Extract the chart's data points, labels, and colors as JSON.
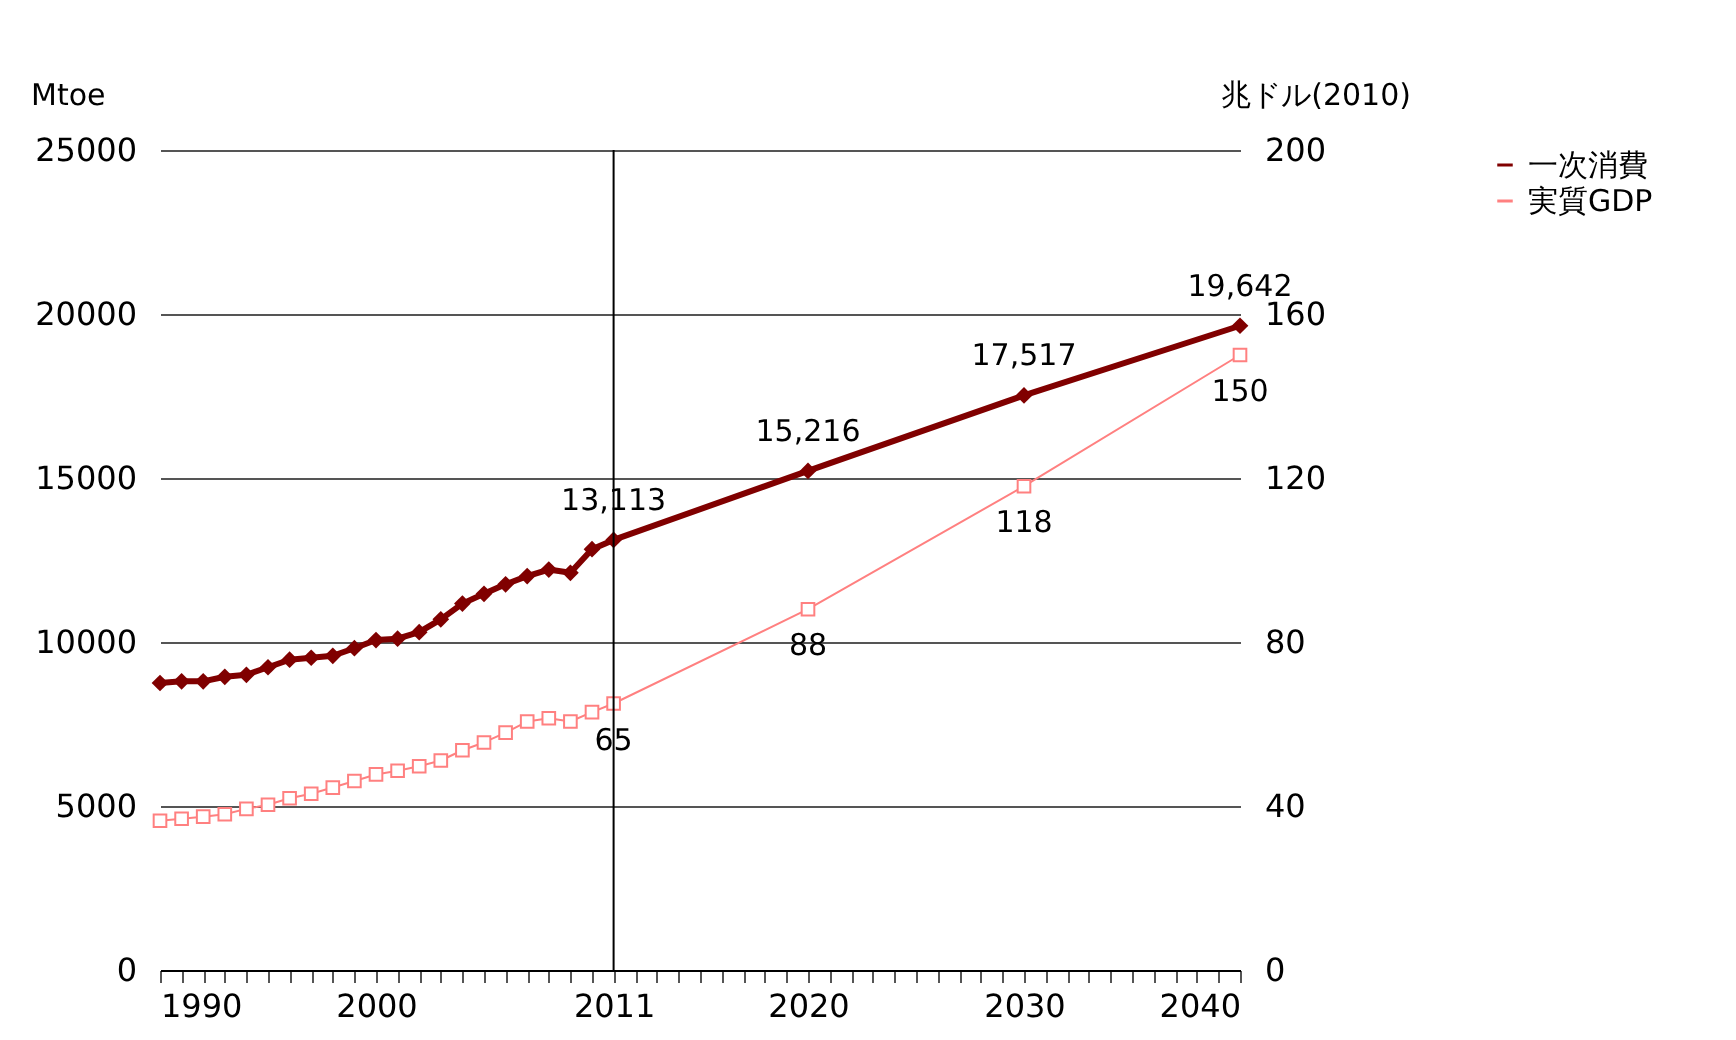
{
  "chart_data": {
    "type": "line",
    "ylabel": "Mtoe",
    "y2label": "兆ドル(2010)",
    "xlim": [
      1990,
      2040
    ],
    "xticks": [
      1990,
      {
        "value": 1991,
        "label": null
      },
      {
        "value": 1992,
        "label": null
      },
      {
        "value": 1993,
        "label": null
      },
      {
        "value": 1994,
        "label": null
      },
      {
        "value": 1995,
        "label": null
      },
      {
        "value": 1996,
        "label": null
      },
      {
        "value": 1997,
        "label": null
      },
      {
        "value": 1998,
        "label": null
      },
      {
        "value": 1999,
        "label": null
      },
      2000,
      {
        "value": 2001,
        "label": null
      },
      {
        "value": 2002,
        "label": null
      },
      {
        "value": 2003,
        "label": null
      },
      {
        "value": 2004,
        "label": null
      },
      {
        "value": 2005,
        "label": null
      },
      {
        "value": 2006,
        "label": null
      },
      {
        "value": 2007,
        "label": null
      },
      {
        "value": 2008,
        "label": null
      },
      {
        "value": 2009,
        "label": null
      },
      {
        "value": 2010,
        "label": null
      },
      2011,
      {
        "value": 2012,
        "label": null
      },
      {
        "value": 2013,
        "label": null
      },
      {
        "value": 2014,
        "label": null
      },
      {
        "value": 2015,
        "label": null
      },
      {
        "value": 2016,
        "label": null
      },
      {
        "value": 2017,
        "label": null
      },
      {
        "value": 2018,
        "label": null
      },
      {
        "value": 2019,
        "label": null
      },
      2020,
      {
        "value": 2021,
        "label": null
      },
      {
        "value": 2022,
        "label": null
      },
      {
        "value": 2023,
        "label": null
      },
      {
        "value": 2024,
        "label": null
      },
      {
        "value": 2025,
        "label": null
      },
      {
        "value": 2026,
        "label": null
      },
      {
        "value": 2027,
        "label": null
      },
      {
        "value": 2028,
        "label": null
      },
      {
        "value": 2029,
        "label": null
      },
      2030,
      {
        "value": 2031,
        "label": null
      },
      {
        "value": 2032,
        "label": null
      },
      {
        "value": 2033,
        "label": null
      },
      {
        "value": 2034,
        "label": null
      },
      {
        "value": 2035,
        "label": null
      },
      {
        "value": 2036,
        "label": null
      },
      {
        "value": 2037,
        "label": null
      },
      {
        "value": 2038,
        "label": null
      },
      {
        "value": 2039,
        "label": null
      },
      2040
    ],
    "ylim": [
      0,
      25000
    ],
    "yticks": [
      0,
      5000,
      10000,
      15000,
      20000,
      25000
    ],
    "y2lim": [
      0,
      200
    ],
    "y2ticks": [
      0,
      40,
      80,
      120,
      160,
      200
    ],
    "grid": "y",
    "legend": "right",
    "ref_lines": [
      {
        "axis": "x",
        "value": 2011,
        "color": "#000000"
      }
    ],
    "series": [
      {
        "name": "一次消費",
        "color": "#800000",
        "marker": "diamond",
        "axis": "y",
        "x": [
          1990,
          1991,
          1992,
          1993,
          1994,
          1995,
          1996,
          1997,
          1998,
          1999,
          2000,
          2001,
          2002,
          2003,
          2004,
          2005,
          2006,
          2007,
          2008,
          2009,
          2010,
          2011,
          2020,
          2030,
          2040
        ],
        "values": [
          8750,
          8800,
          8800,
          8940,
          9000,
          9230,
          9460,
          9520,
          9580,
          9810,
          10060,
          10100,
          10300,
          10690,
          11170,
          11470,
          11760,
          12010,
          12210,
          12110,
          12830,
          13113,
          15216,
          17517,
          19642
        ],
        "value_labels": [
          null,
          null,
          null,
          null,
          null,
          null,
          null,
          null,
          null,
          null,
          null,
          null,
          null,
          null,
          null,
          null,
          null,
          null,
          null,
          null,
          null,
          "13,113",
          "15,216",
          "17,517",
          "19,642"
        ]
      },
      {
        "name": "実質GDP",
        "color": "#ff8080",
        "marker": "square",
        "axis": "y2",
        "x": [
          1990,
          1991,
          1992,
          1993,
          1994,
          1995,
          1996,
          1997,
          1998,
          1999,
          2000,
          2001,
          2002,
          2003,
          2004,
          2005,
          2006,
          2007,
          2008,
          2009,
          2010,
          2011,
          2020,
          2030,
          2040
        ],
        "values": [
          36.4,
          36.9,
          37.4,
          38.0,
          39.3,
          40.3,
          41.9,
          43.0,
          44.5,
          46.1,
          47.7,
          48.6,
          49.7,
          51.1,
          53.6,
          55.5,
          57.9,
          60.6,
          61.4,
          60.6,
          62.9,
          65,
          88,
          118,
          150
        ],
        "value_labels": [
          null,
          null,
          null,
          null,
          null,
          null,
          null,
          null,
          null,
          null,
          null,
          null,
          null,
          null,
          null,
          null,
          null,
          null,
          null,
          null,
          null,
          "65",
          "88",
          "118",
          "150"
        ]
      }
    ]
  }
}
